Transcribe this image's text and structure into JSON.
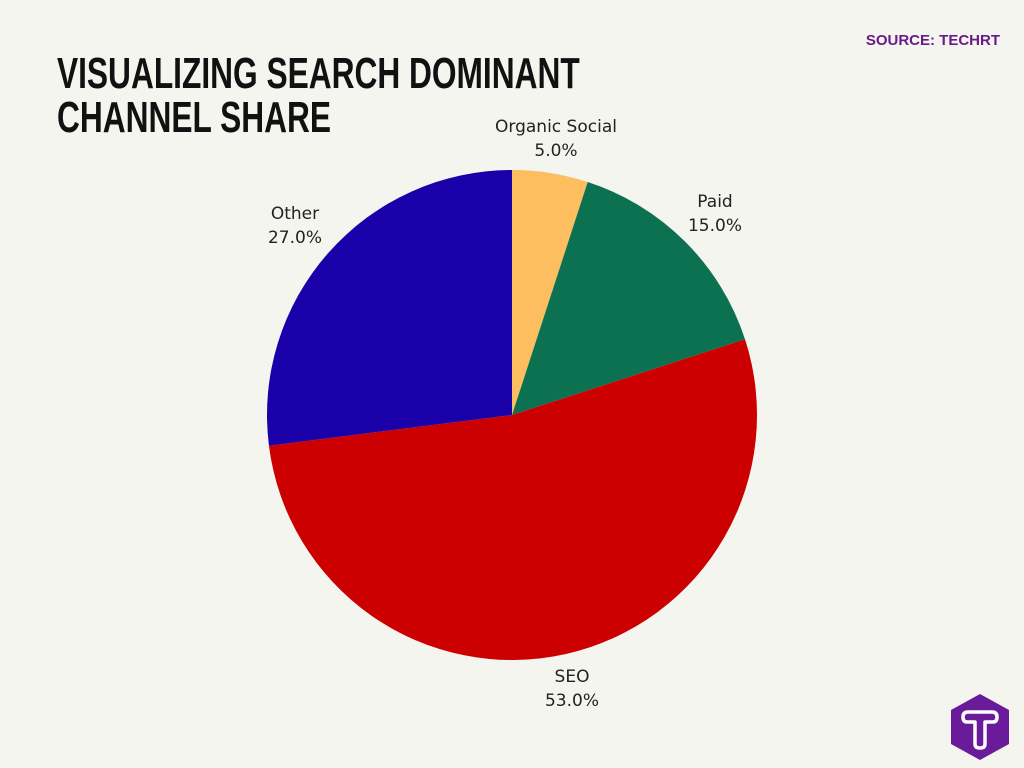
{
  "title": "VISUALIZING SEARCH DOMINANT CHANNEL SHARE",
  "source": "SOURCE: TECHRT",
  "logo": {
    "letter": "T",
    "color": "#6A1B9A"
  },
  "chart_data": {
    "type": "pie",
    "title": "VISUALIZING SEARCH DOMINANT CHANNEL SHARE",
    "start_angle": "top (12 o'clock), clockwise",
    "slices": [
      {
        "label": "Organic Social",
        "value": 5.0,
        "value_label": "5.0%",
        "color": "#FDBE5F"
      },
      {
        "label": "Paid",
        "value": 15.0,
        "value_label": "15.0%",
        "color": "#0B7150"
      },
      {
        "label": "SEO",
        "value": 53.0,
        "value_label": "53.0%",
        "color": "#CC0000"
      },
      {
        "label": "Other",
        "value": 27.0,
        "value_label": "27.0%",
        "color": "#1A00A8"
      }
    ]
  }
}
